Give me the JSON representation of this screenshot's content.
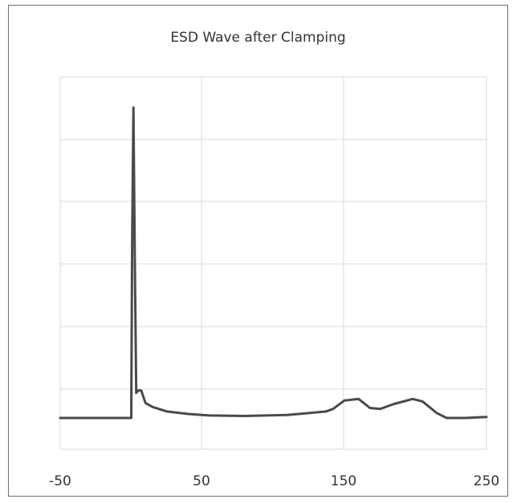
{
  "colors": {
    "line": "#4a4a4a",
    "grid": "#d9d9d9",
    "border": "#6f6f6f",
    "text": "#333333"
  },
  "chart_data": {
    "type": "line",
    "title": "ESD Wave after Clamping",
    "xlabel": "",
    "ylabel": "",
    "xlim": [
      -50,
      250
    ],
    "ylim": [
      -1,
      7
    ],
    "grid": true,
    "legend": "none",
    "x_ticks": [
      -50,
      50,
      150,
      250
    ],
    "y_ticks_shown": false,
    "series": [
      {
        "values": [
          [
            -50,
            0
          ],
          [
            0,
            0
          ],
          [
            0.6,
            3.5
          ],
          [
            1.5,
            6.2
          ],
          [
            2.5,
            3.2
          ],
          [
            3.5,
            0.5
          ],
          [
            5,
            0.55
          ],
          [
            7,
            0.55
          ],
          [
            10,
            0.3
          ],
          [
            15,
            0.22
          ],
          [
            25,
            0.13
          ],
          [
            40,
            0.08
          ],
          [
            55,
            0.05
          ],
          [
            80,
            0.04
          ],
          [
            110,
            0.06
          ],
          [
            137,
            0.13
          ],
          [
            142,
            0.18
          ],
          [
            150,
            0.35
          ],
          [
            160,
            0.38
          ],
          [
            168,
            0.2
          ],
          [
            175,
            0.18
          ],
          [
            185,
            0.28
          ],
          [
            198,
            0.38
          ],
          [
            205,
            0.33
          ],
          [
            215,
            0.1
          ],
          [
            222,
            0
          ],
          [
            235,
            0
          ],
          [
            250,
            0.02
          ]
        ]
      }
    ]
  }
}
